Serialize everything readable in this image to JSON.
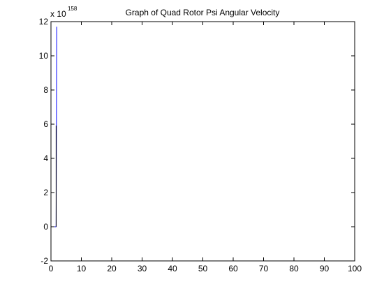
{
  "chart_data": {
    "type": "line",
    "title": "Graph of Quad Rotor Psi Angular Velocity",
    "xlabel": "",
    "ylabel": "",
    "exponent_base": "x 10",
    "exponent_power": "158",
    "xlim": [
      0,
      100
    ],
    "ylim": [
      -2,
      12
    ],
    "x_ticks": [
      0,
      10,
      20,
      30,
      40,
      50,
      60,
      70,
      80,
      90,
      100
    ],
    "y_ticks": [
      -2,
      0,
      2,
      4,
      6,
      8,
      10,
      12
    ],
    "grid": false,
    "series": [
      {
        "color": "#0000ff",
        "points": [
          [
            1.2,
            0
          ],
          [
            1.7,
            0
          ],
          [
            1.8,
            5.8
          ],
          [
            1.9,
            11.7
          ]
        ]
      },
      {
        "color": "#000000",
        "points": [
          [
            1.7,
            0
          ],
          [
            1.7,
            5.9
          ],
          [
            1.75,
            5.9
          ]
        ]
      }
    ]
  }
}
